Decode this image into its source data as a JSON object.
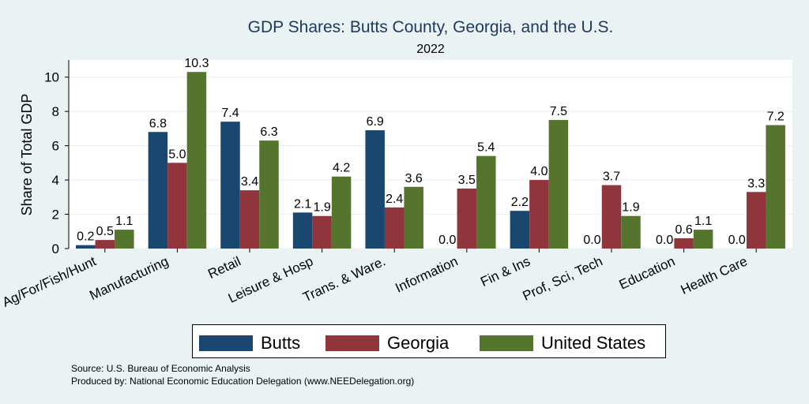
{
  "chart_data": {
    "type": "bar",
    "title": "GDP Shares: Butts County, Georgia, and the U.S.",
    "subtitle": "2022",
    "xlabel": "",
    "ylabel": "Share of Total GDP",
    "ylim": [
      0,
      11
    ],
    "yticks": [
      0,
      2,
      4,
      6,
      8,
      10
    ],
    "grid": true,
    "legend_position": "bottom",
    "categories": [
      "Ag/For/Fish/Hunt",
      "Manufacturing",
      "Retail",
      "Leisure & Hosp",
      "Trans. & Ware.",
      "Information",
      "Fin & Ins",
      "Prof, Sci, Tech",
      "Education",
      "Health Care"
    ],
    "series": [
      {
        "name": "Butts",
        "color": "#1a476f",
        "values": [
          0.2,
          6.8,
          7.4,
          2.1,
          6.9,
          0.0,
          2.2,
          0.0,
          0.0,
          0.0
        ],
        "labels": [
          "0.2",
          "6.8",
          "7.4",
          "2.1",
          "6.9",
          "0.0",
          "2.2",
          "0.0",
          "0.0",
          "0.0"
        ]
      },
      {
        "name": "Georgia",
        "color": "#90353b",
        "values": [
          0.5,
          5.0,
          3.4,
          1.9,
          2.4,
          3.5,
          4.0,
          3.7,
          0.6,
          3.3
        ],
        "labels": [
          "0.5",
          "5.0",
          "3.4",
          "1.9",
          "2.4",
          "3.5",
          "4.0",
          "3.7",
          "0.6",
          "3.3"
        ]
      },
      {
        "name": "United States",
        "color": "#55752f",
        "values": [
          1.1,
          10.3,
          6.3,
          4.2,
          3.6,
          5.4,
          7.5,
          1.9,
          1.1,
          7.2
        ],
        "labels": [
          "1.1",
          "10.3",
          "6.3",
          "4.2",
          "3.6",
          "5.4",
          "7.5",
          "1.9",
          "1.1",
          "7.2"
        ]
      }
    ]
  },
  "footer": {
    "source": "Source: U.S. Bureau of Economic Analysis",
    "produced_by": "Produced by: National Economic Education Delegation (www.NEEDelegation.org)"
  }
}
